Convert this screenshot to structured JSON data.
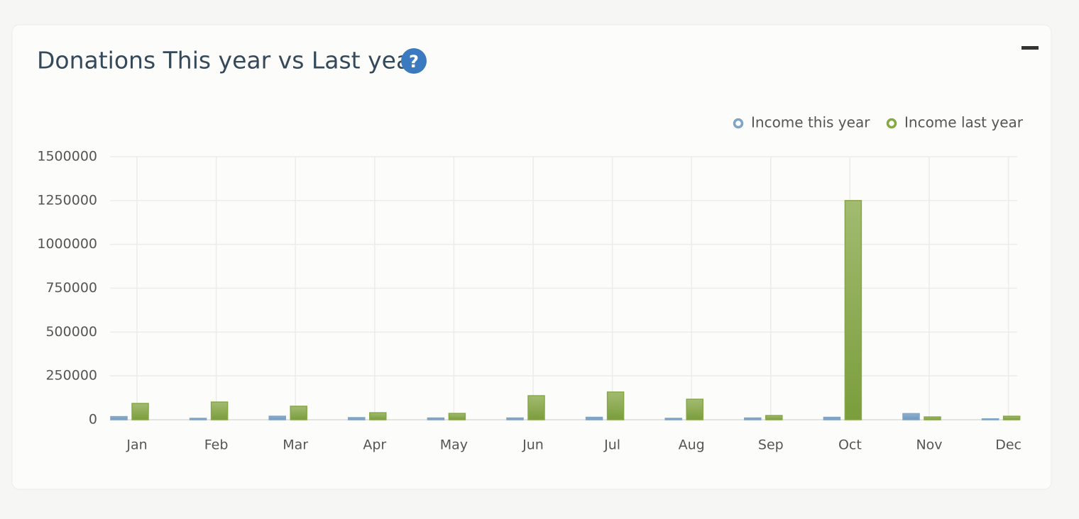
{
  "card": {
    "title": "Donations This year vs Last year",
    "help_icon": "?"
  },
  "chart_data": {
    "type": "bar",
    "categories": [
      "Jan",
      "Feb",
      "Mar",
      "Apr",
      "May",
      "Jun",
      "Jul",
      "Aug",
      "Sep",
      "Oct",
      "Nov",
      "Dec"
    ],
    "series": [
      {
        "name": "Income this year",
        "color": "#7fa4c6",
        "values": [
          18000,
          8000,
          20000,
          12000,
          10000,
          10000,
          14000,
          8000,
          10000,
          14000,
          35000,
          5000
        ]
      },
      {
        "name": "Income last year",
        "color": "#85a844",
        "values": [
          93000,
          101000,
          77000,
          40000,
          36000,
          137000,
          158000,
          117000,
          24000,
          1250000,
          16000,
          20000
        ]
      }
    ],
    "ylim": [
      0,
      1500000
    ],
    "yticks": [
      0,
      250000,
      500000,
      750000,
      1000000,
      1250000,
      1500000
    ],
    "grid": true,
    "legend": "top-right"
  }
}
